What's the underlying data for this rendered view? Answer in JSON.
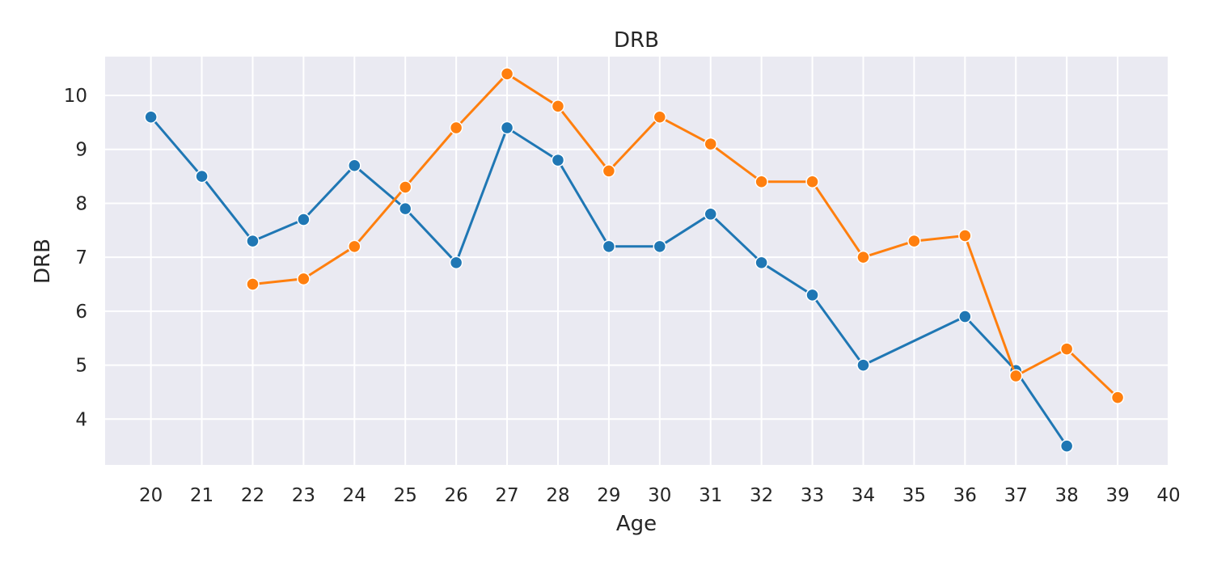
{
  "chart_data": {
    "type": "line",
    "title": "DRB",
    "xlabel": "Age",
    "ylabel": "DRB",
    "xlim": [
      19.1,
      40
    ],
    "ylim": [
      3.15,
      10.72
    ],
    "xticks": [
      20,
      21,
      22,
      23,
      24,
      25,
      26,
      27,
      28,
      29,
      30,
      31,
      32,
      33,
      34,
      35,
      36,
      37,
      38,
      39,
      40
    ],
    "yticks": [
      4,
      5,
      6,
      7,
      8,
      9,
      10
    ],
    "grid": true,
    "colors": {
      "background": "#eaeaf2",
      "grid": "#ffffff"
    },
    "series": [
      {
        "color": "#1f77b4",
        "x": [
          20,
          21,
          22,
          23,
          24,
          25,
          26,
          27,
          28,
          29,
          30,
          31,
          32,
          33,
          34,
          36,
          37,
          38
        ],
        "values": [
          9.6,
          8.5,
          7.3,
          7.7,
          8.7,
          7.9,
          6.9,
          9.4,
          8.8,
          7.2,
          7.2,
          7.8,
          6.9,
          6.3,
          5.0,
          5.9,
          4.9,
          3.5
        ]
      },
      {
        "color": "#ff7f0e",
        "x": [
          22,
          23,
          24,
          25,
          26,
          27,
          28,
          29,
          30,
          31,
          32,
          33,
          34,
          35,
          36,
          37,
          38,
          39
        ],
        "values": [
          6.5,
          6.6,
          7.2,
          8.3,
          9.4,
          10.4,
          9.8,
          8.6,
          9.6,
          9.1,
          8.4,
          8.4,
          7.0,
          7.3,
          7.4,
          4.8,
          5.3,
          4.4
        ]
      }
    ]
  }
}
